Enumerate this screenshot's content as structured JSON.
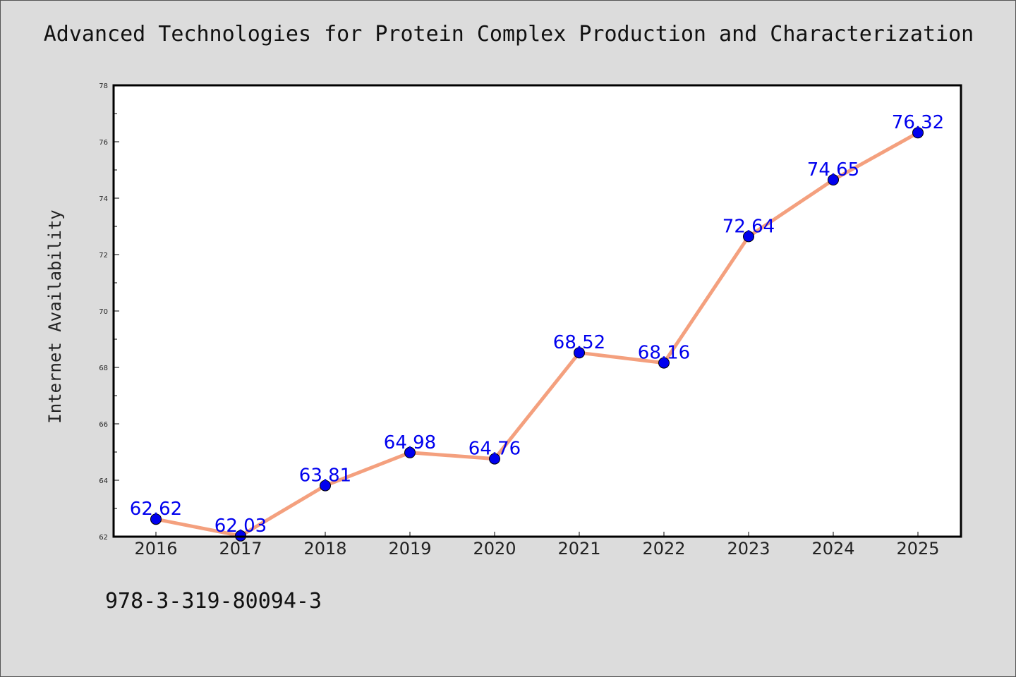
{
  "chart_data": {
    "type": "line",
    "title": "Advanced Technologies for Protein Complex Production and Characterization",
    "xlabel": "",
    "ylabel": "Internet Availability",
    "categories": [
      "2016",
      "2017",
      "2018",
      "2019",
      "2020",
      "2021",
      "2022",
      "2023",
      "2024",
      "2025"
    ],
    "values": [
      62.62,
      62.03,
      63.81,
      64.98,
      64.76,
      68.52,
      68.16,
      72.64,
      74.65,
      76.32
    ],
    "data_labels": [
      "62.62",
      "62.03",
      "63.81",
      "64.98",
      "64.76",
      "68.52",
      "68.16",
      "72.64",
      "74.65",
      "76.32"
    ],
    "ylim": [
      62,
      78
    ],
    "yticks": [
      "62",
      "64",
      "66",
      "68",
      "70",
      "72",
      "74",
      "76",
      "78"
    ],
    "grid": false,
    "line_color": "#f4a07e",
    "marker_color": "#0000ee",
    "label_color": "#0000ee"
  },
  "footer": {
    "code": "978-3-319-80094-3"
  }
}
